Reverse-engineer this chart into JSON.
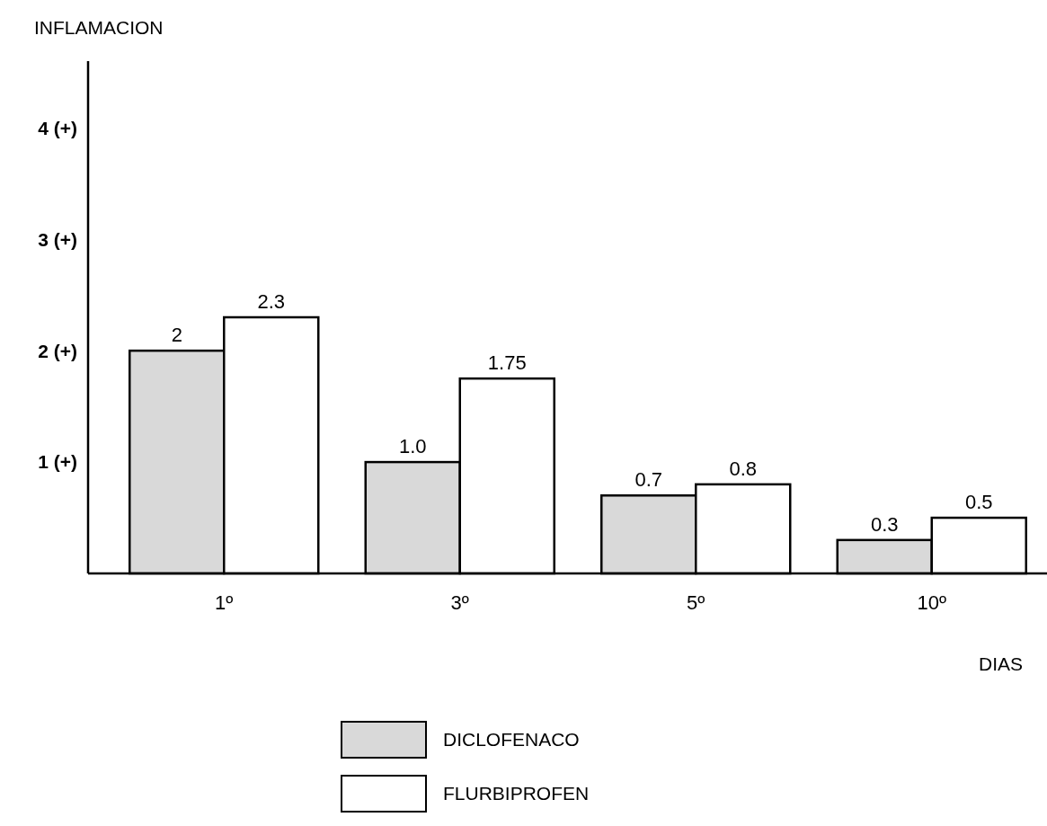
{
  "chart_data": {
    "type": "bar",
    "ylabel": "INFLAMACION",
    "xlabel": "DIAS",
    "categories": [
      "1º",
      "3º",
      "5º",
      "10º"
    ],
    "series": [
      {
        "name": "DICLOFENACO",
        "color": "#d9d9d9",
        "values": [
          2,
          1.0,
          0.7,
          0.3
        ],
        "value_labels": [
          "2",
          "1.0",
          "0.7",
          "0.3"
        ]
      },
      {
        "name": "FLURBIPROFEN",
        "color": "#ffffff",
        "values": [
          2.3,
          1.75,
          0.8,
          0.5
        ],
        "value_labels": [
          "2.3",
          "1.75",
          "0.8",
          "0.5"
        ]
      }
    ],
    "ylim": [
      0,
      4.6
    ],
    "yticks": [
      {
        "value": 1,
        "label": "1 (+)"
      },
      {
        "value": 2,
        "label": "2 (+)"
      },
      {
        "value": 3,
        "label": "3 (+)"
      },
      {
        "value": 4,
        "label": "4 (+)"
      }
    ],
    "grid": false,
    "legend": "bottom"
  }
}
